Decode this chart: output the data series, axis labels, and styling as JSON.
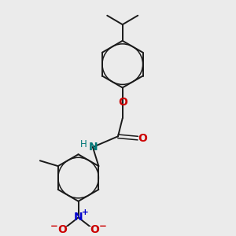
{
  "background_color": "#ebebeb",
  "bond_color": "#1a1a1a",
  "atom_colors": {
    "O": "#cc0000",
    "N_amide": "#007777",
    "N_nitro": "#0000cc",
    "H": "#007777"
  },
  "font_size": 8.5,
  "ring_r": 26,
  "lw": 1.4,
  "lw_inner": 1.1
}
